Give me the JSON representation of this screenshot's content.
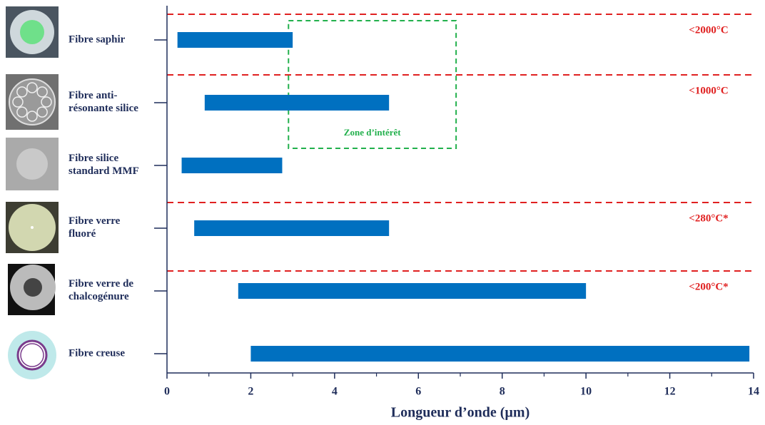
{
  "chart_data": {
    "type": "range-bar",
    "x_label": "Longueur d’onde (µm)",
    "categories": [
      "Fibre saphir",
      "Fibre anti-\nrésonante silice",
      "Fibre silice\nstandard MMF",
      "Fibre verre\nfluoré",
      "Fibre verre de\nchalcogénure",
      "Fibre creuse"
    ],
    "values": [
      [
        0.25,
        3
      ],
      [
        0.9,
        5.3
      ],
      [
        0.35,
        2.75
      ],
      [
        0.65,
        5.3
      ],
      [
        1.7,
        10
      ],
      [
        2,
        13.9
      ]
    ],
    "color": "#0070c0",
    "xlim": [
      0,
      14
    ],
    "xticks": [
      0,
      2,
      4,
      6,
      8,
      10,
      12,
      14
    ],
    "xminorticks": [
      1,
      3,
      5,
      7,
      9,
      11,
      13
    ],
    "thresholds": [
      {
        "label": "<2000°C",
        "color": "#e02020"
      },
      {
        "label": "<1000°C",
        "color": "#e02020"
      },
      {
        "label": "<280°C*",
        "color": "#e02020"
      },
      {
        "label": "<200°C*",
        "color": "#e02020"
      }
    ],
    "zone": {
      "label": "Zone d’intérêt",
      "xlim": [
        2.9,
        6.9
      ],
      "color": "#22b04c"
    }
  }
}
